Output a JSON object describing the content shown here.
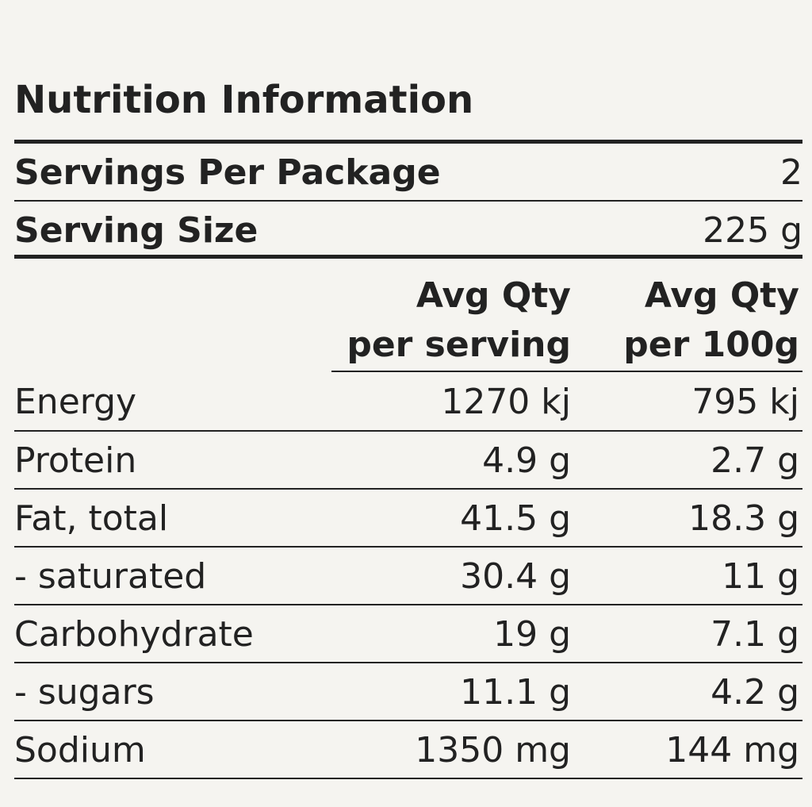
{
  "title": "Nutrition Information",
  "servings_per_package": {
    "label": "Servings Per Package",
    "value": "2"
  },
  "serving_size": {
    "label": "Serving Size",
    "value": "225 g"
  },
  "columns": {
    "per_serving_line1": "Avg Qty",
    "per_serving_line2": "per serving",
    "per_100g_line1": "Avg Qty",
    "per_100g_line2": "per 100g"
  },
  "rows": [
    {
      "name": "Energy",
      "per_serving": "1270 kj",
      "per_100g": "795 kj"
    },
    {
      "name": "Protein",
      "per_serving": "4.9 g",
      "per_100g": "2.7 g"
    },
    {
      "name": "Fat, total",
      "per_serving": "41.5 g",
      "per_100g": "18.3 g"
    },
    {
      "name": "- saturated",
      "per_serving": "30.4 g",
      "per_100g": "11 g"
    },
    {
      "name": "Carbohydrate",
      "per_serving": "19 g",
      "per_100g": "7.1 g"
    },
    {
      "name": "- sugars",
      "per_serving": "11.1 g",
      "per_100g": "4.2 g"
    },
    {
      "name": "Sodium",
      "per_serving": "1350 mg",
      "per_100g": "144 mg"
    }
  ]
}
